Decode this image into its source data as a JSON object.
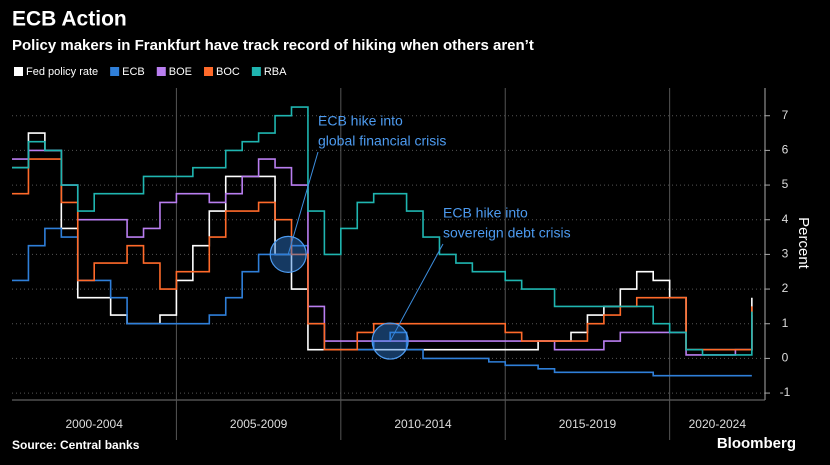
{
  "chart_data": {
    "type": "step-line",
    "title": "ECB Action",
    "subtitle": "Policy makers in Frankfurt have track record of hiking when others aren’t",
    "y_label": "Percent",
    "source": "Source: Central banks",
    "brand": "Bloomberg",
    "x": [
      2000,
      2000.5,
      2001,
      2001.5,
      2002,
      2002.5,
      2003,
      2003.5,
      2004,
      2004.5,
      2005,
      2005.5,
      2006,
      2006.5,
      2007,
      2007.5,
      2008,
      2008.5,
      2009,
      2009.5,
      2010,
      2010.5,
      2011,
      2011.5,
      2012,
      2012.5,
      2013,
      2013.5,
      2014,
      2014.5,
      2015,
      2015.5,
      2016,
      2016.5,
      2017,
      2017.5,
      2018,
      2018.5,
      2019,
      2019.5,
      2020,
      2020.5,
      2021,
      2021.5,
      2022,
      2022.5
    ],
    "xlim": [
      2000,
      2022.9
    ],
    "x_bands": [
      {
        "start": 2000,
        "end": 2005,
        "label": "2000-2004"
      },
      {
        "start": 2005,
        "end": 2010,
        "label": "2005-2009"
      },
      {
        "start": 2010,
        "end": 2015,
        "label": "2010-2014"
      },
      {
        "start": 2015,
        "end": 2020,
        "label": "2015-2019"
      },
      {
        "start": 2020,
        "end": 2022.9,
        "label": "2020-2024"
      }
    ],
    "ylim": [
      -1.2,
      7.8
    ],
    "yticks": [
      -1,
      0,
      1,
      2,
      3,
      4,
      5,
      6,
      7
    ],
    "grid": true,
    "series": [
      {
        "name": "Fed policy rate",
        "color": "#ffffff",
        "values": [
          5.5,
          6.5,
          6.0,
          3.75,
          1.75,
          1.75,
          1.25,
          1.0,
          1.0,
          1.25,
          2.25,
          3.25,
          4.25,
          5.25,
          5.25,
          5.25,
          3.0,
          2.0,
          0.25,
          0.25,
          0.25,
          0.25,
          0.25,
          0.25,
          0.25,
          0.25,
          0.25,
          0.25,
          0.25,
          0.25,
          0.25,
          0.25,
          0.5,
          0.5,
          0.75,
          1.25,
          1.5,
          2.0,
          2.5,
          2.25,
          1.75,
          0.25,
          0.25,
          0.25,
          0.25,
          1.75
        ]
      },
      {
        "name": "ECB",
        "color": "#2f7fd9",
        "values": [
          2.25,
          3.25,
          3.75,
          3.5,
          2.25,
          2.25,
          1.75,
          1.0,
          1.0,
          1.0,
          1.0,
          1.0,
          1.25,
          1.75,
          2.5,
          3.0,
          3.0,
          3.25,
          1.0,
          0.25,
          0.25,
          0.25,
          0.5,
          0.75,
          0.25,
          0,
          0,
          0,
          0,
          -0.1,
          -0.2,
          -0.2,
          -0.3,
          -0.4,
          -0.4,
          -0.4,
          -0.4,
          -0.4,
          -0.4,
          -0.5,
          -0.5,
          -0.5,
          -0.5,
          -0.5,
          -0.5,
          -0.5
        ]
      },
      {
        "name": "BOE",
        "color": "#b97ef0",
        "values": [
          5.75,
          6.0,
          6.0,
          5.0,
          4.0,
          4.0,
          4.0,
          3.5,
          3.75,
          4.5,
          4.75,
          4.75,
          4.5,
          4.75,
          5.25,
          5.75,
          5.5,
          5.0,
          1.5,
          0.5,
          0.5,
          0.5,
          0.5,
          0.5,
          0.5,
          0.5,
          0.5,
          0.5,
          0.5,
          0.5,
          0.5,
          0.5,
          0.5,
          0.25,
          0.25,
          0.25,
          0.5,
          0.75,
          0.75,
          0.75,
          0.75,
          0.1,
          0.1,
          0.1,
          0.25,
          1.25
        ]
      },
      {
        "name": "BOC",
        "color": "#ff6a2a",
        "values": [
          4.75,
          5.75,
          5.75,
          4.5,
          2.25,
          2.75,
          2.75,
          3.25,
          2.75,
          2.0,
          2.5,
          2.5,
          3.5,
          4.25,
          4.25,
          4.5,
          4.0,
          3.0,
          1.0,
          0.25,
          0.25,
          0.75,
          1.0,
          1.0,
          1.0,
          1.0,
          1.0,
          1.0,
          1.0,
          1.0,
          0.75,
          0.5,
          0.5,
          0.5,
          0.5,
          1.0,
          1.25,
          1.5,
          1.75,
          1.75,
          1.75,
          0.25,
          0.25,
          0.25,
          0.25,
          1.5
        ]
      },
      {
        "name": "RBA",
        "color": "#1fb5b0",
        "values": [
          5.5,
          6.25,
          6.0,
          5.0,
          4.25,
          4.75,
          4.75,
          4.75,
          5.25,
          5.25,
          5.25,
          5.5,
          5.5,
          6.0,
          6.25,
          6.5,
          7.0,
          7.25,
          4.25,
          3.0,
          3.75,
          4.5,
          4.75,
          4.75,
          4.25,
          3.5,
          3.0,
          2.75,
          2.5,
          2.5,
          2.25,
          2.0,
          2.0,
          1.5,
          1.5,
          1.5,
          1.5,
          1.5,
          1.5,
          1.0,
          0.75,
          0.25,
          0.1,
          0.1,
          0.1,
          1.35
        ]
      }
    ],
    "annotations": [
      {
        "lines": [
          "ECB hike into",
          "global financial crisis"
        ],
        "x": 2008.4,
        "y": 3
      },
      {
        "lines": [
          "ECB hike into",
          "sovereign debt crisis"
        ],
        "x": 2011.5,
        "y": 0.5
      }
    ]
  }
}
